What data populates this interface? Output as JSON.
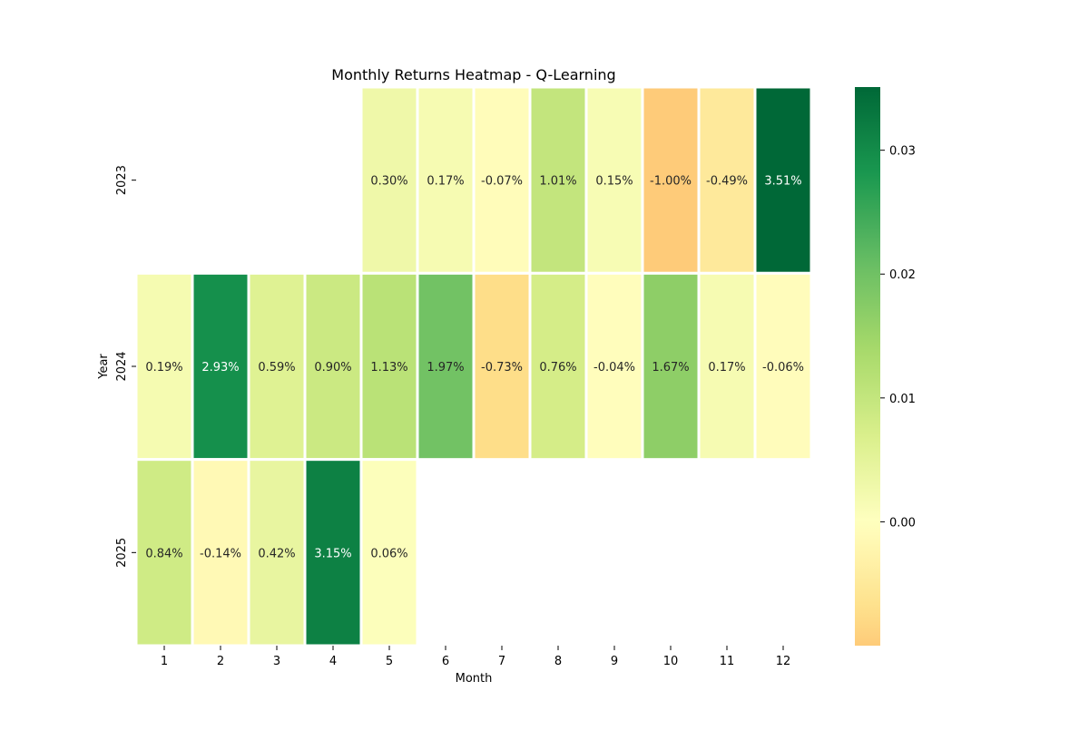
{
  "chart_data": {
    "type": "heatmap",
    "title": "Monthly Returns Heatmap - Q-Learning",
    "xlabel": "Month",
    "ylabel": "Year",
    "x_categories": [
      "1",
      "2",
      "3",
      "4",
      "5",
      "6",
      "7",
      "8",
      "9",
      "10",
      "11",
      "12"
    ],
    "y_categories": [
      "2023",
      "2024",
      "2025"
    ],
    "values": [
      [
        null,
        null,
        null,
        null,
        0.003,
        0.0017,
        -0.0007,
        0.0101,
        0.0015,
        -0.01,
        -0.0049,
        0.0351
      ],
      [
        0.0019,
        0.0293,
        0.0059,
        0.009,
        0.0113,
        0.0197,
        -0.0073,
        0.0076,
        -0.0004,
        0.0167,
        0.0017,
        -0.0006
      ],
      [
        0.0084,
        -0.0014,
        0.0042,
        0.0315,
        0.0006,
        null,
        null,
        null,
        null,
        null,
        null,
        null
      ]
    ],
    "cell_labels": [
      [
        null,
        null,
        null,
        null,
        "0.30%",
        "0.17%",
        "-0.07%",
        "1.01%",
        "0.15%",
        "-1.00%",
        "-0.49%",
        "3.51%"
      ],
      [
        "0.19%",
        "2.93%",
        "0.59%",
        "0.90%",
        "1.13%",
        "1.97%",
        "-0.73%",
        "0.76%",
        "-0.04%",
        "1.67%",
        "0.17%",
        "-0.06%"
      ],
      [
        "0.84%",
        "-0.14%",
        "0.42%",
        "3.15%",
        "0.06%",
        null,
        null,
        null,
        null,
        null,
        null,
        null
      ]
    ],
    "colormap": "RdYlGn",
    "center": 0,
    "vmin": -0.01,
    "vmax": 0.0351,
    "colorbar": {
      "ticks": [
        0.0,
        0.01,
        0.02,
        0.03
      ],
      "tick_labels": [
        "0.00",
        "0.01",
        "0.02",
        "0.03"
      ],
      "position": "right"
    }
  }
}
